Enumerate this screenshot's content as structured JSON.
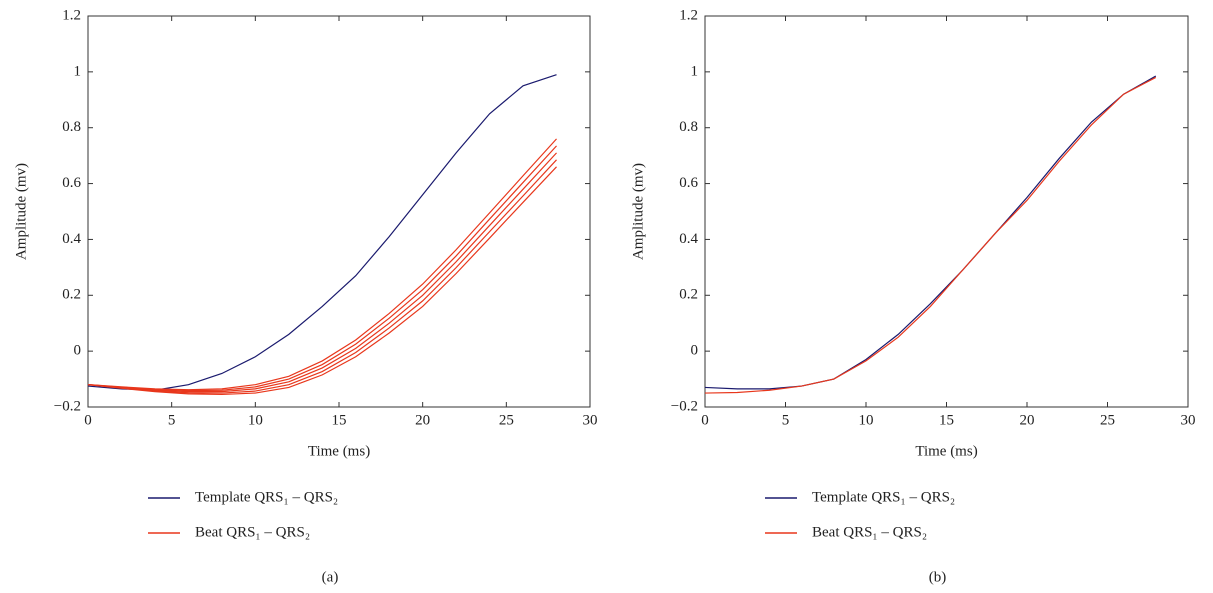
{
  "chart_data": [
    {
      "type": "line",
      "panel_label": "(a)",
      "xlabel": "Time (ms)",
      "ylabel": "Amplitude (mv)",
      "xlim": [
        0,
        30
      ],
      "xticks": [
        0,
        5,
        10,
        15,
        20,
        25,
        30
      ],
      "ylim": [
        -0.2,
        1.2
      ],
      "yticks": [
        {
          "value": -0.2,
          "label": "−0.2"
        },
        0,
        0.2,
        0.4,
        0.6,
        0.8,
        1,
        1.2
      ],
      "x": [
        0,
        2,
        4,
        6,
        8,
        10,
        12,
        14,
        16,
        18,
        20,
        22,
        24,
        26,
        28
      ],
      "series": [
        {
          "name": "Template QRS₁ – QRS₂",
          "color": "#1a1a6e",
          "values": [
            -0.125,
            -0.135,
            -0.14,
            -0.12,
            -0.08,
            -0.02,
            0.06,
            0.16,
            0.27,
            0.41,
            0.56,
            0.71,
            0.85,
            0.95,
            0.99
          ]
        },
        {
          "name": "Beat QRS₁ – QRS₂",
          "color": "#e8371c",
          "values": [
            -0.12,
            -0.13,
            -0.14,
            -0.145,
            -0.145,
            -0.135,
            -0.11,
            -0.06,
            0.01,
            0.1,
            0.2,
            0.32,
            0.45,
            0.58,
            0.71
          ]
        },
        {
          "color": "#e8371c",
          "values": [
            -0.12,
            -0.133,
            -0.145,
            -0.153,
            -0.155,
            -0.15,
            -0.13,
            -0.085,
            -0.02,
            0.065,
            0.16,
            0.278,
            0.405,
            0.533,
            0.66
          ]
        },
        {
          "color": "#e8371c",
          "values": [
            -0.12,
            -0.131,
            -0.143,
            -0.149,
            -0.15,
            -0.143,
            -0.12,
            -0.073,
            -0.005,
            0.083,
            0.18,
            0.299,
            0.428,
            0.556,
            0.685
          ]
        },
        {
          "color": "#e8371c",
          "values": [
            -0.12,
            -0.129,
            -0.138,
            -0.141,
            -0.14,
            -0.128,
            -0.1,
            -0.048,
            0.025,
            0.118,
            0.22,
            0.341,
            0.473,
            0.604,
            0.735
          ]
        },
        {
          "color": "#e8371c",
          "values": [
            -0.12,
            -0.128,
            -0.135,
            -0.138,
            -0.135,
            -0.12,
            -0.09,
            -0.035,
            0.04,
            0.135,
            0.24,
            0.363,
            0.495,
            0.628,
            0.76
          ]
        }
      ]
    },
    {
      "type": "line",
      "panel_label": "(b)",
      "xlabel": "Time (ms)",
      "ylabel": "Amplitude (mv)",
      "xlim": [
        0,
        30
      ],
      "xticks": [
        0,
        5,
        10,
        15,
        20,
        25,
        30
      ],
      "ylim": [
        -0.2,
        1.2
      ],
      "yticks": [
        {
          "value": -0.2,
          "label": "−0.2"
        },
        0,
        0.2,
        0.4,
        0.6,
        0.8,
        1,
        1.2
      ],
      "x": [
        0,
        2,
        4,
        6,
        8,
        10,
        12,
        14,
        16,
        18,
        20,
        22,
        24,
        26,
        28
      ],
      "series": [
        {
          "name": "Template QRS₁ – QRS₂",
          "color": "#1a1a6e",
          "values": [
            -0.13,
            -0.135,
            -0.135,
            -0.125,
            -0.1,
            -0.03,
            0.06,
            0.17,
            0.29,
            0.42,
            0.55,
            0.69,
            0.82,
            0.92,
            0.985
          ]
        },
        {
          "name": "Beat QRS₁ – QRS₂",
          "color": "#e8371c",
          "values": [
            -0.15,
            -0.148,
            -0.14,
            -0.125,
            -0.1,
            -0.035,
            0.05,
            0.16,
            0.29,
            0.42,
            0.54,
            0.68,
            0.81,
            0.92,
            0.98
          ]
        }
      ]
    }
  ]
}
